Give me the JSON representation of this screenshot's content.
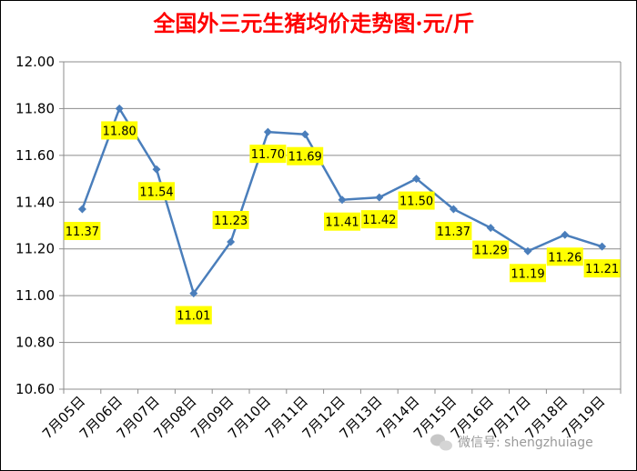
{
  "chart_data": {
    "type": "line",
    "title": "全国外三元生猪均价走势图·元/斤",
    "categories": [
      "7月05日",
      "7月06日",
      "7月07日",
      "7月08日",
      "7月09日",
      "7月10日",
      "7月11日",
      "7月12日",
      "7月13日",
      "7月14日",
      "7月15日",
      "7月16日",
      "7月17日",
      "7月18日",
      "7月19日"
    ],
    "series": [
      {
        "values": [
          11.37,
          11.8,
          11.54,
          11.01,
          11.23,
          11.7,
          11.69,
          11.41,
          11.42,
          11.5,
          11.37,
          11.29,
          11.19,
          11.26,
          11.21
        ]
      }
    ],
    "data_labels": [
      "11.37",
      "11.80",
      "11.54",
      "11.01",
      "11.23",
      "11.70",
      "11.69",
      "11.41",
      "11.42",
      "11.50",
      "11.37",
      "11.29",
      "11.19",
      "11.26",
      "11.21"
    ],
    "y_ticks": [
      "12.00",
      "11.80",
      "11.60",
      "11.40",
      "11.20",
      "11.00",
      "10.80",
      "10.60"
    ],
    "ylim": [
      10.6,
      12.0
    ],
    "grid": true,
    "colors": {
      "line": "#4a7ebb",
      "label_bg": "#ffff00",
      "title": "#ff0000"
    }
  },
  "watermark": "微信号: shengzhuiage"
}
